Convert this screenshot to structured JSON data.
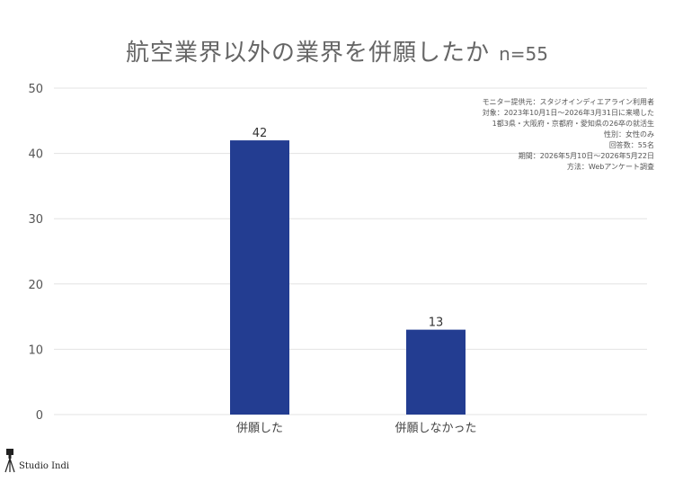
{
  "title": "航空業界以外の業界を併願したか",
  "n_label": "n=55",
  "meta_lines": [
    "モニター提供元：スタジオインディエアライン利用者",
    "対象：2023年10月1日〜2026年3月31日に来場した",
    "1都3県・大阪府・京都府・愛知県の26卒の就活生",
    "性別：女性のみ",
    "回答数：55名",
    "期間：2026年5月10日〜2026年5月22日",
    "方法：Webアンケート調査"
  ],
  "logo_text": "Studio Indi",
  "colors": {
    "bar": "#233d91",
    "grid": "#e3e3e3",
    "text": "#555555",
    "title": "#666666"
  },
  "chart_data": {
    "type": "bar",
    "title": "航空業界以外の業界を併願したか",
    "categories": [
      "併願した",
      "併願しなかった"
    ],
    "values": [
      42,
      13
    ],
    "xlabel": "",
    "ylabel": "",
    "ylim": [
      0,
      50
    ],
    "yticks": [
      0,
      10,
      20,
      30,
      40,
      50
    ],
    "grid": true,
    "legend": "none"
  }
}
